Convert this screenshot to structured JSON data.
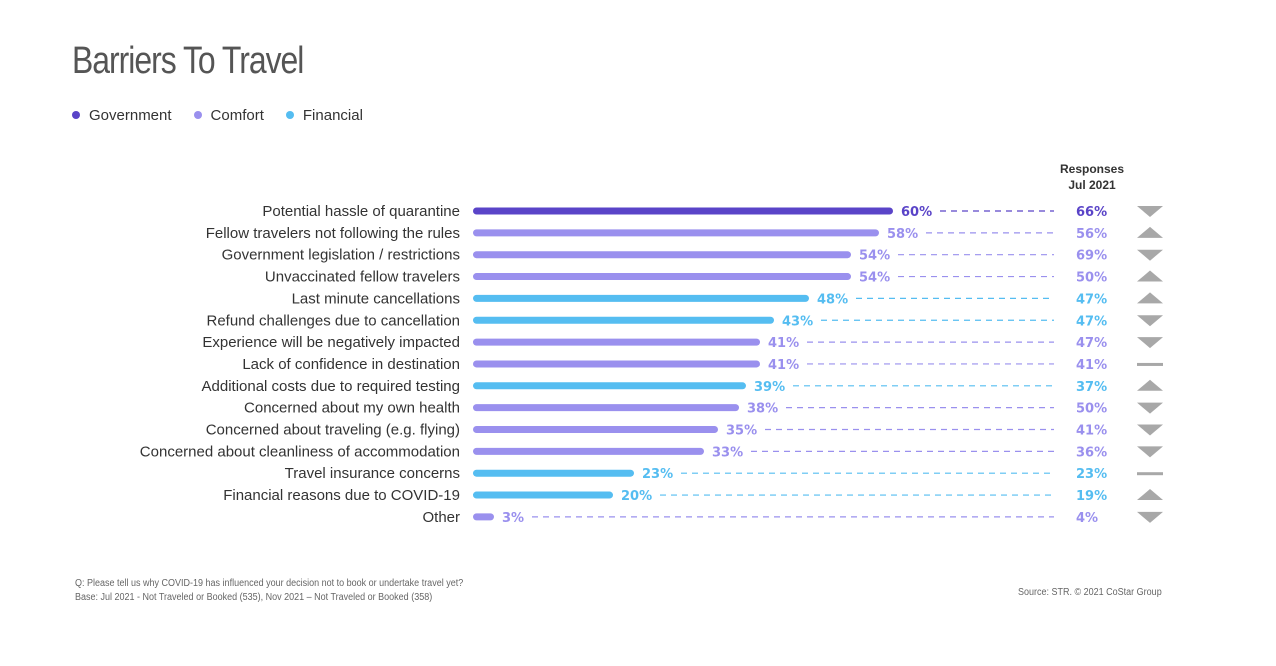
{
  "title": "Barriers To Travel",
  "legend": [
    {
      "label": "Government",
      "color": "#5a44c8"
    },
    {
      "label": "Comfort",
      "color": "#9a90ee"
    },
    {
      "label": "Financial",
      "color": "#55bdf1"
    }
  ],
  "chart_data": {
    "type": "bar",
    "orientation": "horizontal",
    "title": "Barriers To Travel",
    "comparison_header": [
      "Responses",
      "Jul 2021"
    ],
    "categories": [
      "Potential hassle of quarantine",
      "Fellow travelers not following the rules",
      "Government legislation / restrictions",
      "Unvaccinated fellow travelers",
      "Last minute cancellations",
      "Refund challenges due to cancellation",
      "Experience will be negatively impacted",
      "Lack of confidence in destination",
      "Additional costs due to required testing",
      "Concerned about my own health",
      "Concerned about traveling (e.g. flying)",
      "Concerned about cleanliness of accommodation",
      "Travel insurance concerns",
      "Financial reasons due to COVID-19",
      "Other"
    ],
    "groups": [
      "Government",
      "Comfort",
      "Comfort",
      "Comfort",
      "Financial",
      "Financial",
      "Comfort",
      "Comfort",
      "Financial",
      "Comfort",
      "Comfort",
      "Comfort",
      "Financial",
      "Financial",
      "Comfort"
    ],
    "values": [
      60,
      58,
      54,
      54,
      48,
      43,
      41,
      41,
      39,
      38,
      35,
      33,
      23,
      20,
      3
    ],
    "value_labels": [
      "60%",
      "58%",
      "54%",
      "54%",
      "48%",
      "43%",
      "41%",
      "41%",
      "39%",
      "38%",
      "35%",
      "33%",
      "23%",
      "20%",
      "3%"
    ],
    "jul2021_values": [
      66,
      56,
      69,
      50,
      47,
      47,
      47,
      41,
      37,
      50,
      41,
      36,
      23,
      19,
      4
    ],
    "jul2021_labels": [
      "66%",
      "56%",
      "69%",
      "50%",
      "47%",
      "47%",
      "47%",
      "41%",
      "37%",
      "50%",
      "41%",
      "36%",
      "23%",
      "19%",
      "4%"
    ],
    "trend": [
      "down",
      "up",
      "down",
      "up",
      "up",
      "down",
      "down",
      "flat",
      "up",
      "down",
      "down",
      "down",
      "flat",
      "up",
      "down"
    ],
    "trend_color": "#a8a8a8",
    "xlim": [
      0,
      100
    ],
    "grid": false,
    "legend_position": "top-left"
  },
  "footnote": {
    "question": "Q: Please tell us why COVID-19 has influenced your decision not to book or undertake travel yet?",
    "base": "Base: Jul 2021 - Not Traveled or Booked (535), Nov 2021 – Not Traveled or Booked (358)"
  },
  "source": "Source: STR. © 2021 CoStar Group"
}
